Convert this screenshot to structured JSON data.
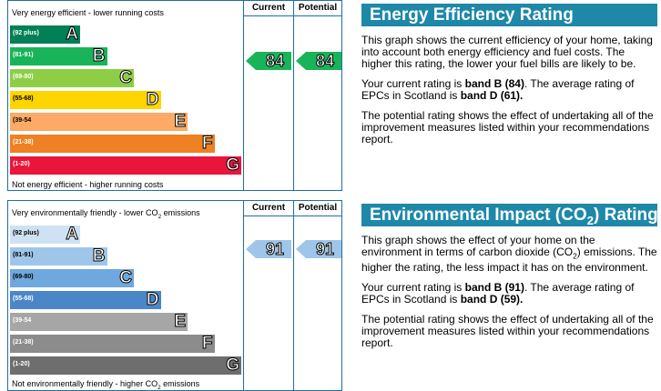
{
  "energy": {
    "chart": {
      "top_caption": "Very energy efficient - lower running costs",
      "bottom_caption": "Not energy efficient - higher running costs",
      "col_current": "Current",
      "col_potential": "Potential",
      "bands": [
        {
          "range": "(92 plus)",
          "letter": "A",
          "color": "#008054"
        },
        {
          "range": "(81-91)",
          "letter": "B",
          "color": "#19b459"
        },
        {
          "range": "(69-80)",
          "letter": "C",
          "color": "#8dce46"
        },
        {
          "range": "(55-68)",
          "letter": "D",
          "color": "#ffd500"
        },
        {
          "range": "(39-54",
          "letter": "E",
          "color": "#fcaa65"
        },
        {
          "range": "(21-38)",
          "letter": "F",
          "color": "#ef8023"
        },
        {
          "range": "(1-20)",
          "letter": "G",
          "color": "#e9153b"
        }
      ],
      "current": "84",
      "potential": "84",
      "arrow_color": "#19b459"
    },
    "panel": {
      "title": "Energy Efficiency Rating",
      "p1": "This graph shows the current efficiency of your home, taking into account both energy efficiency and fuel costs. The higher this rating, the lower your fuel bills are likely to be.",
      "p2_a": "Your current rating is ",
      "p2_b": "band B (84)",
      "p2_c": ". The average rating of EPCs in Scotland is ",
      "p2_d": "band D (61).",
      "p3": "The potential rating shows the effect of undertaking all of the improvement measures listed within your recommendations report."
    }
  },
  "environment": {
    "chart": {
      "top_caption_a": "Very environmentally friendly - lower CO",
      "top_caption_sub": "2",
      "top_caption_b": " emissions",
      "bottom_caption_a": "Not environmentally friendly - higher CO",
      "bottom_caption_sub": "2",
      "bottom_caption_b": " emissions",
      "col_current": "Current",
      "col_potential": "Potential",
      "bands": [
        {
          "range": "(92 plus)",
          "letter": "A",
          "color": "#cfe2f3"
        },
        {
          "range": "(81-91)",
          "letter": "B",
          "color": "#9fc6ea"
        },
        {
          "range": "(69-80)",
          "letter": "C",
          "color": "#6fa8dc"
        },
        {
          "range": "(55-68)",
          "letter": "D",
          "color": "#4a86c8"
        },
        {
          "range": "(39-54",
          "letter": "E",
          "color": "#a6a6a6"
        },
        {
          "range": "(21-38)",
          "letter": "F",
          "color": "#8c8c8c"
        },
        {
          "range": "(1-20)",
          "letter": "G",
          "color": "#6e6e6e"
        }
      ],
      "current": "91",
      "potential": "91",
      "arrow_color": "#9fc6ea"
    },
    "panel": {
      "title_a": "Environmental Impact (CO",
      "title_sub": "2",
      "title_b": ") Rating",
      "p1_a": "This graph shows the effect of your home on the environment in terms of carbon dioxide (CO",
      "p1_sub": "2",
      "p1_b": ") emissions. The higher the rating, the less impact it has on the environment.",
      "p2_a": "Your current rating is ",
      "p2_b": "band B (91)",
      "p2_c": ". The average rating of EPCs in Scotland is ",
      "p2_d": "band D (59).",
      "p3": "The potential rating shows the effect of undertaking all of the improvement measures listed within your recommendations report."
    }
  }
}
